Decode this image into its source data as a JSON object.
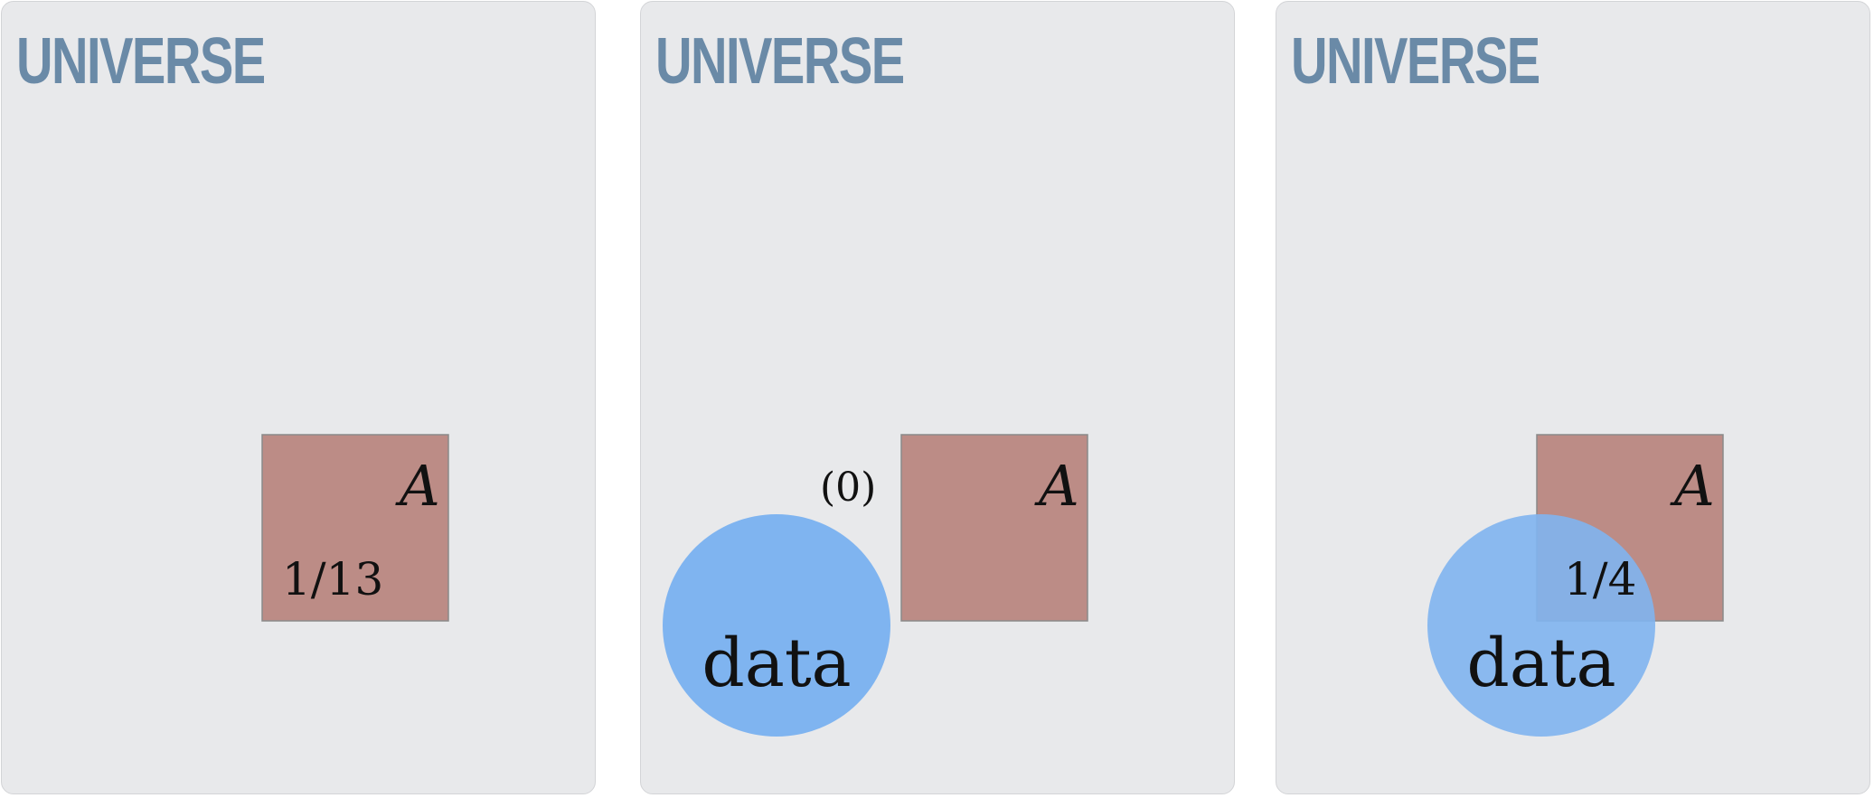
{
  "colors": {
    "panel_bg": "#e8e9eb",
    "panel_border": "#d3d4d7",
    "title": "#6a8aa7",
    "set_a_fill": "#bc8c86",
    "set_a_stroke": "#8a8a8a",
    "data_fill": "#7fb4f0"
  },
  "panels": [
    {
      "title": "UNIVERSE",
      "a_label": "A",
      "a_fraction": "1/13"
    },
    {
      "title": "UNIVERSE",
      "a_label": "A",
      "outside_label": "(0)",
      "data_label": "data"
    },
    {
      "title": "UNIVERSE",
      "a_label": "A",
      "overlap_fraction": "1/4",
      "data_label": "data"
    }
  ]
}
